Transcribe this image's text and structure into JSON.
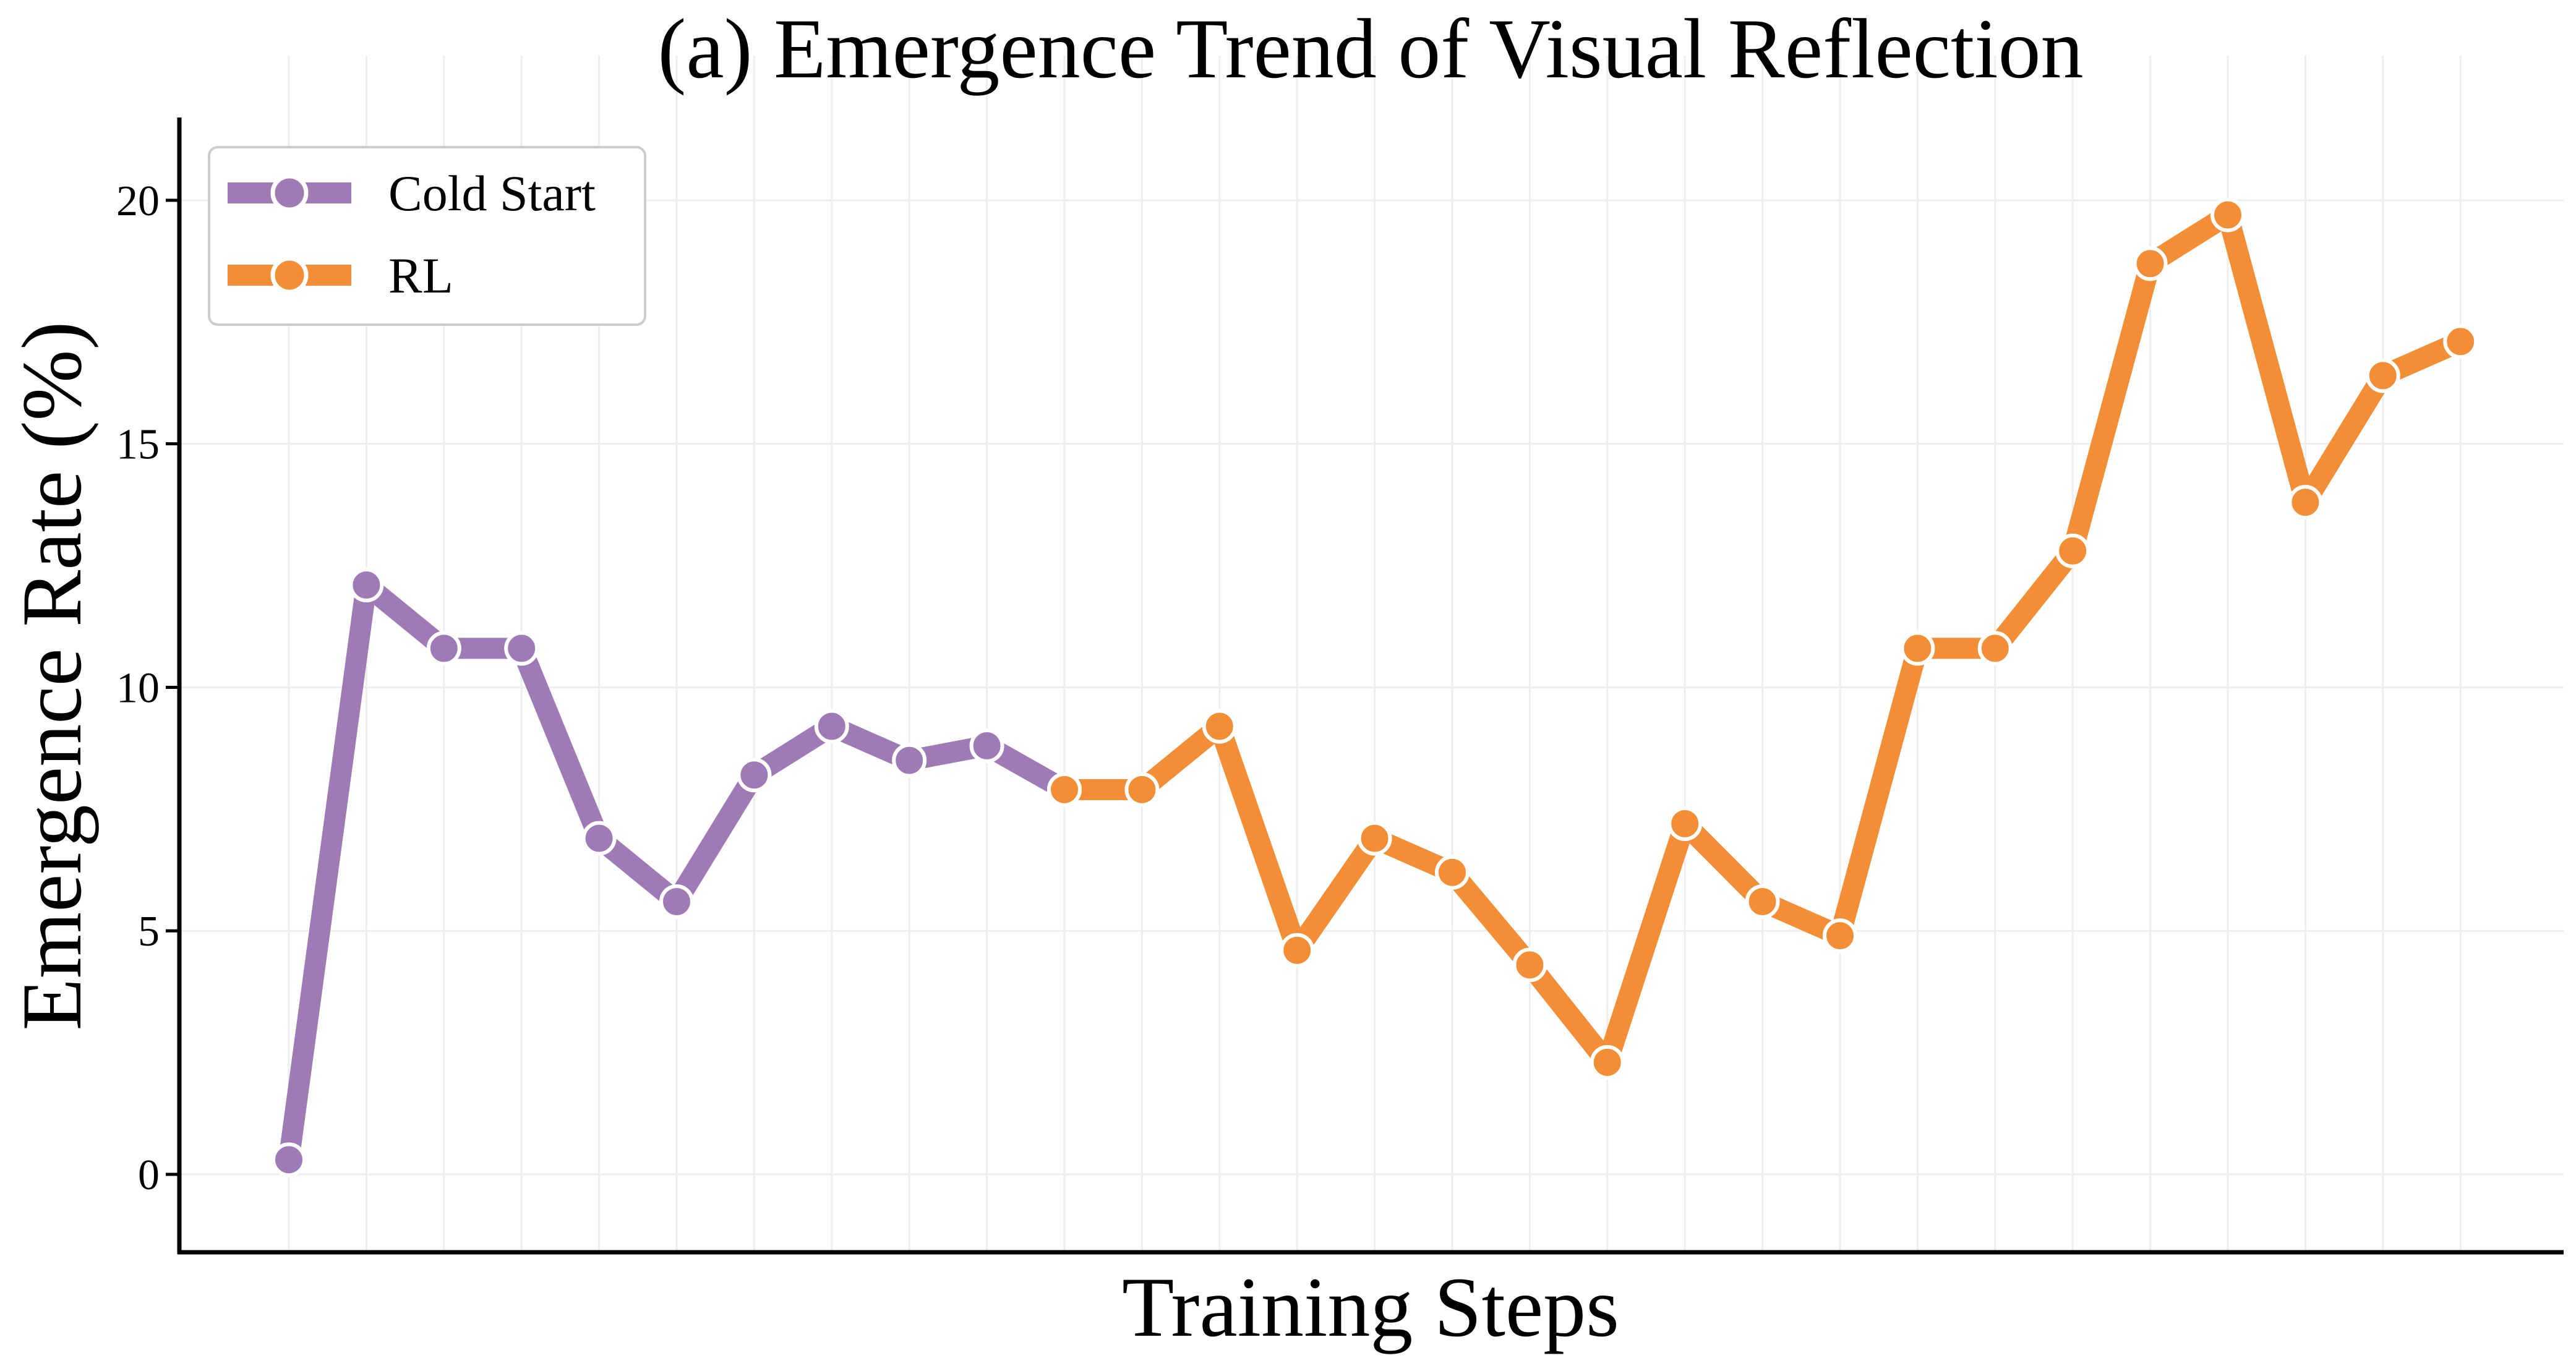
{
  "chart_data": {
    "type": "line",
    "title": "(a) Emergence Trend of Visual Reflection",
    "xlabel": "Training Steps",
    "ylabel": "Emergence Rate (%)",
    "ylim": [
      -1.6,
      21.7
    ],
    "yticks": [
      0,
      5,
      10,
      15,
      20
    ],
    "x_ticks_labeled": false,
    "grid": true,
    "legend_position": "top-left",
    "series": [
      {
        "name": "Cold Start",
        "color": "#9e7bb5",
        "x": [
          0,
          1,
          2,
          3,
          4,
          5,
          6,
          7,
          8,
          9,
          10
        ],
        "y": [
          0.3,
          12.1,
          10.8,
          10.8,
          6.9,
          5.6,
          8.2,
          9.2,
          8.5,
          8.8,
          7.9
        ]
      },
      {
        "name": "RL",
        "color": "#f28e35",
        "x": [
          10,
          11,
          12,
          13,
          14,
          15,
          16,
          17,
          18,
          19,
          20,
          21,
          22,
          23,
          24,
          25,
          26,
          27,
          28
        ],
        "y": [
          7.9,
          7.9,
          9.2,
          4.6,
          6.9,
          6.2,
          4.3,
          2.3,
          7.2,
          5.6,
          4.9,
          10.8,
          10.8,
          12.8,
          18.7,
          19.7,
          13.8,
          16.4,
          17.1
        ]
      }
    ]
  }
}
